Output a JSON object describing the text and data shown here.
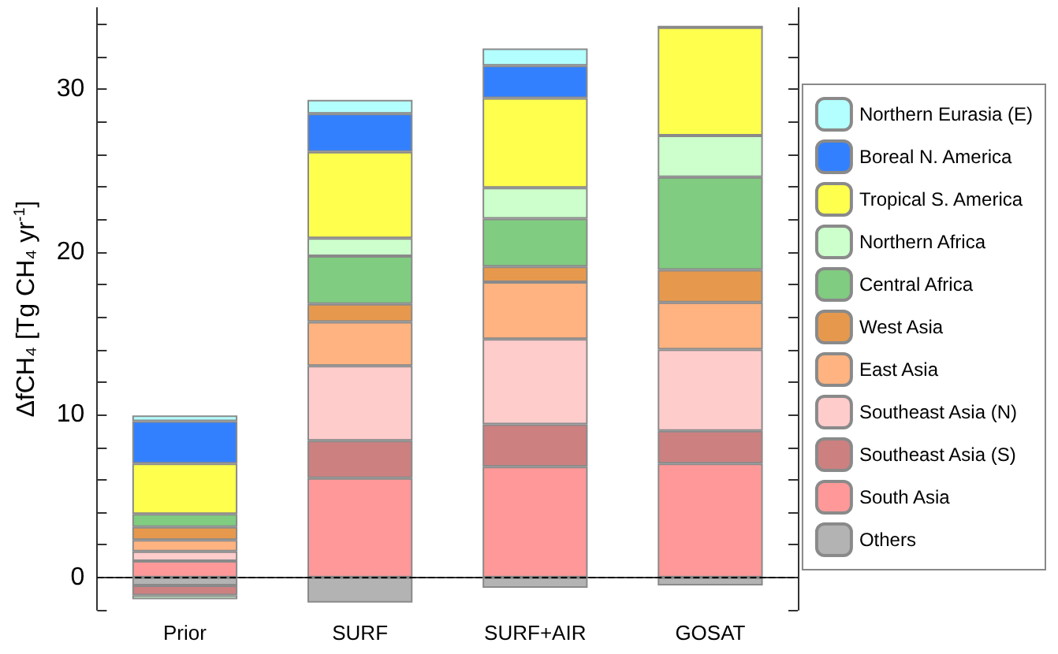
{
  "chart_data": {
    "type": "bar",
    "stacked": true,
    "ylabel": "ΔfCH₄ [Tg CH₄ yr$^{-1}$]",
    "categories": [
      "Prior",
      "SURF",
      "SURF+AIR",
      "GOSAT"
    ],
    "series": [
      {
        "name": "Others",
        "color": "#b3b3b3",
        "values": [
          -0.5,
          -1.55,
          -0.65,
          -0.5
        ]
      },
      {
        "name": "South Asia",
        "color": "#ff9999",
        "values": [
          1.0,
          6.1,
          6.8,
          7.0
        ]
      },
      {
        "name": "Southeast Asia (S)",
        "color": "#cc8080",
        "values": [
          -0.6,
          2.3,
          2.6,
          2.0
        ]
      },
      {
        "name": "Southeast Asia (N)",
        "color": "#ffcccc",
        "values": [
          0.6,
          4.6,
          5.25,
          5.0
        ]
      },
      {
        "name": "East Asia",
        "color": "#ffb380",
        "values": [
          0.7,
          2.7,
          3.5,
          2.9
        ]
      },
      {
        "name": "West Asia",
        "color": "#e6994d",
        "values": [
          0.8,
          1.1,
          0.95,
          2.0
        ]
      },
      {
        "name": "Central Africa",
        "color": "#80cc80",
        "values": [
          0.8,
          2.95,
          2.95,
          5.7
        ]
      },
      {
        "name": "Northern Africa",
        "color": "#ccffcc",
        "values": [
          -0.25,
          1.1,
          1.9,
          2.55
        ]
      },
      {
        "name": "Tropical S. America",
        "color": "#ffff4d",
        "values": [
          3.1,
          5.3,
          5.5,
          6.65
        ]
      },
      {
        "name": "Boreal N. America",
        "color": "#3380ff",
        "values": [
          2.6,
          2.35,
          2.0,
          0
        ]
      },
      {
        "name": "Northern Eurasia (E)",
        "color": "#b3ffff",
        "values": [
          0.35,
          0.85,
          1.05,
          0.1
        ]
      }
    ],
    "ylim": [
      -2,
      35
    ],
    "yticks": [
      {
        "value": -2,
        "label": null
      },
      0,
      {
        "value": 2,
        "label": null
      },
      {
        "value": 4,
        "label": null
      },
      {
        "value": 6,
        "label": null
      },
      {
        "value": 8,
        "label": null
      },
      10,
      {
        "value": 12,
        "label": null
      },
      {
        "value": 14,
        "label": null
      },
      {
        "value": 16,
        "label": null
      },
      {
        "value": 18,
        "label": null
      },
      20,
      {
        "value": 22,
        "label": null
      },
      {
        "value": 24,
        "label": null
      },
      {
        "value": 26,
        "label": null
      },
      {
        "value": 28,
        "label": null
      },
      30,
      {
        "value": 32,
        "label": null
      },
      {
        "value": 34,
        "label": null
      }
    ],
    "ref_lines": [
      {
        "axis": "y",
        "value": 0,
        "color": "#000000",
        "line_style": "dashed"
      }
    ],
    "grid": false,
    "legend": "right"
  }
}
